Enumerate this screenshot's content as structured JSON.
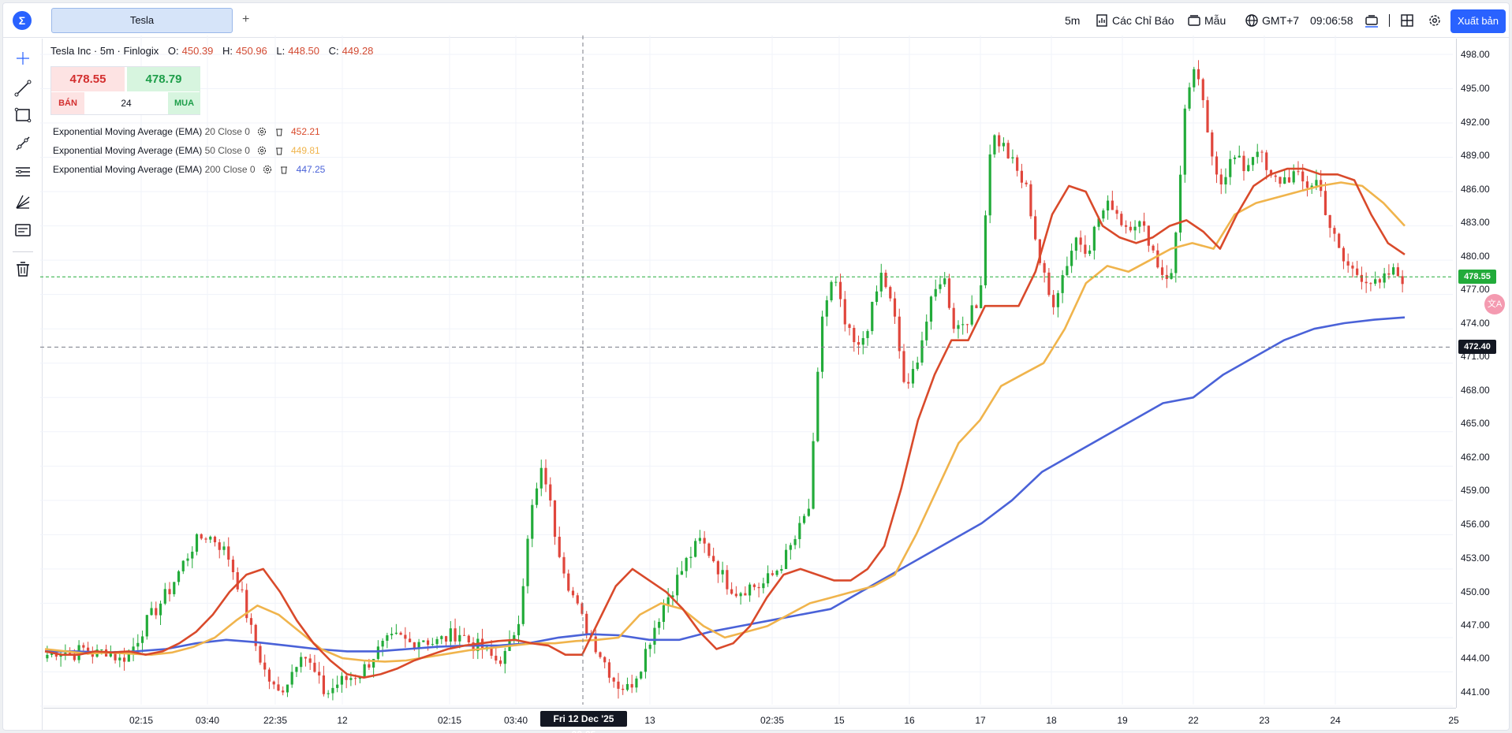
{
  "app": {
    "logo_icon": "finlogix-logo-icon"
  },
  "tabs": [
    {
      "label": "Tesla"
    }
  ],
  "toolbar": {
    "add_tab": "+",
    "interval": "5m",
    "indicators_label": "Các Chỉ Báo",
    "templates_label": "Mẫu",
    "timezone_label": "GMT+7",
    "clock": "09:06:58",
    "export_label": "Xuất bản"
  },
  "left_tools": [
    "crosshair-icon",
    "trendline-icon",
    "rectangle-icon",
    "ray-icon",
    "parallel-lines-icon",
    "fib-fan-icon",
    "note-icon",
    "trash-icon"
  ],
  "legend": {
    "title": "Tesla Inc · 5m · Finlogix",
    "o_label": "O:",
    "o": "450.39",
    "h_label": "H:",
    "h": "450.96",
    "l_label": "L:",
    "l": "448.50",
    "c_label": "C:",
    "c": "449.28"
  },
  "trade": {
    "sell_price": "478.55",
    "buy_price": "478.79",
    "sell_label": "BÁN",
    "buy_label": "MUA",
    "quantity": "24"
  },
  "indicators": [
    {
      "name": "Exponential Moving Average (EMA)",
      "params": "20 Close 0",
      "value": "452.21",
      "color": "#d94a2b"
    },
    {
      "name": "Exponential Moving Average (EMA)",
      "params": "50 Close 0",
      "value": "449.81",
      "color": "#f0b44c"
    },
    {
      "name": "Exponential Moving Average (EMA)",
      "params": "200 Close 0",
      "value": "447.25",
      "color": "#4a62d8"
    }
  ],
  "price_axis": {
    "ticks": [
      "498.00",
      "495.00",
      "492.00",
      "489.00",
      "486.00",
      "483.00",
      "480.00",
      "477.00",
      "474.00",
      "471.00",
      "468.00",
      "465.00",
      "462.00",
      "459.00",
      "456.00",
      "453.00",
      "450.00",
      "447.00",
      "444.00",
      "441.00"
    ],
    "current_price_badge": "478.55",
    "crosshair_price_badge": "472.40"
  },
  "time_axis": {
    "ticks": [
      "02:15",
      "03:40",
      "22:35",
      "12",
      "02:15",
      "03:40",
      "13",
      "02:35",
      "15",
      "16",
      "17",
      "18",
      "19",
      "22",
      "23",
      "24",
      "25"
    ],
    "crosshair_label": "Fri 12 Dec '25 22:35"
  },
  "colors": {
    "up": "#22ab3a",
    "down": "#e0463c",
    "accent": "#2962ff"
  },
  "chart_data": {
    "type": "candlestick",
    "ylim": [
      440,
      499
    ],
    "current_price": 478.55,
    "crosshair_price": 472.4,
    "anchor_prices": [
      445.5,
      446,
      445.5,
      446,
      445.5,
      446,
      445,
      446,
      448,
      449.5,
      451,
      453,
      455,
      456,
      455.5,
      454,
      451,
      447,
      444,
      442,
      443.5,
      446,
      444,
      442,
      443,
      443.5,
      444,
      445.5,
      446.5,
      447,
      446.5,
      447,
      446.5,
      447,
      447.5,
      446.5,
      446,
      445,
      445.5,
      449,
      458,
      462,
      456,
      452,
      449,
      447,
      445,
      443,
      442.5,
      444.5,
      447.5,
      450,
      452,
      454,
      455.5,
      454,
      452,
      451,
      451.5,
      451.5,
      452.5,
      454,
      456,
      458.5,
      475,
      478.5,
      474,
      472,
      475,
      479,
      475,
      468,
      472,
      476,
      479,
      474,
      475,
      476,
      491,
      490,
      488,
      486,
      480,
      476,
      479,
      482,
      481,
      484,
      485,
      483,
      483.5,
      482,
      479,
      478.5,
      493,
      497,
      490,
      487,
      489,
      488,
      490,
      487,
      487,
      487.5,
      486.5,
      487,
      483,
      480,
      479,
      478.5,
      477.5,
      479,
      478.5
    ],
    "ema20": [
      445.8,
      445.5,
      445.5,
      445.8,
      445.7,
      445.8,
      445.5,
      445.8,
      446.5,
      447.5,
      449,
      451,
      452.5,
      453,
      451,
      448.5,
      446.5,
      445,
      443.8,
      443.5,
      443.8,
      444.3,
      445,
      445.5,
      446,
      446.3,
      446.5,
      446.7,
      446.8,
      446.5,
      446.3,
      445.5,
      445.5,
      448.5,
      451.5,
      453,
      452,
      451,
      449.5,
      447.5,
      446,
      446.5,
      448,
      450.5,
      452.5,
      453,
      452.5,
      452,
      452,
      453,
      455,
      460,
      466,
      470,
      473,
      473,
      476,
      476,
      476,
      479,
      484,
      486.5,
      486,
      483,
      482,
      481.5,
      482,
      483,
      483.5,
      482.5,
      481,
      484,
      486.5,
      487.5,
      488,
      488,
      487.5,
      487.5,
      487,
      484,
      481.5,
      480.5
    ],
    "ema50": [
      446,
      445.8,
      445.6,
      445.7,
      445.6,
      445.5,
      445.7,
      446.2,
      447,
      448.5,
      449.8,
      449,
      447.5,
      446,
      445.2,
      445,
      444.9,
      445,
      445.3,
      445.6,
      445.9,
      446.1,
      446.3,
      446.5,
      446.5,
      446.7,
      446.8,
      447,
      449,
      450,
      449.5,
      448,
      447,
      447.5,
      448,
      449,
      450,
      450.5,
      451,
      451.5,
      452.5,
      456,
      460,
      464,
      466,
      469,
      470,
      471,
      474,
      478,
      479.5,
      479,
      480,
      481,
      481.5,
      481,
      484,
      485,
      485.5,
      486,
      486.5,
      486.8,
      486.5,
      485,
      483
    ],
    "ema200": [
      445.8,
      445.8,
      445.7,
      445.8,
      446,
      446.5,
      446.8,
      446.6,
      446.3,
      446,
      445.8,
      445.8,
      446,
      446.2,
      446.3,
      446.3,
      446.5,
      447,
      447.3,
      447.2,
      446.8,
      446.8,
      447.5,
      448,
      448.5,
      449,
      449.5,
      451,
      452.5,
      454,
      455.5,
      457,
      459,
      461.5,
      463,
      464.5,
      466,
      467.5,
      468,
      470,
      471.5,
      473,
      474,
      474.5,
      474.8,
      475
    ]
  }
}
